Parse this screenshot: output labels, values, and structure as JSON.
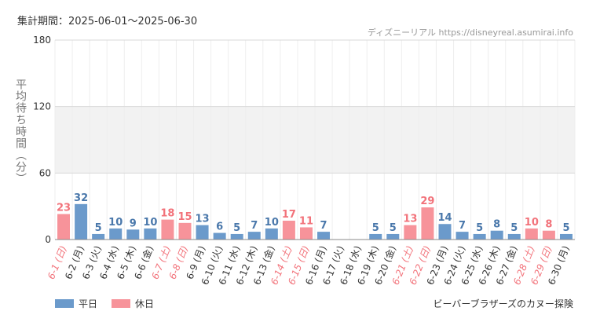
{
  "header": {
    "period_label": "集計期間：2025-06-01～2025-06-30",
    "source": "ディズニーリアル https://disneyreal.asumirai.info"
  },
  "legend": {
    "weekday": "平日",
    "holiday": "休日"
  },
  "footer": {
    "attraction": "ビーバーブラザーズのカヌー探険"
  },
  "colors": {
    "weekday": "#6b9acb",
    "holiday": "#f7939a",
    "weekday_text": "#4a78ab",
    "holiday_text": "#f2727a",
    "band": "#f2f2f2",
    "grid": "#d8d8d8"
  },
  "chart_data": {
    "type": "bar",
    "ylabel": "平均待ち時間（分）",
    "ylim": [
      0,
      180
    ],
    "yticks": [
      0,
      60,
      120,
      180
    ],
    "shaded_band": [
      60,
      120
    ],
    "categories": [
      "6-1 (日)",
      "6-2 (月)",
      "6-3 (火)",
      "6-4 (水)",
      "6-5 (木)",
      "6-6 (金)",
      "6-7 (土)",
      "6-8 (日)",
      "6-9 (月)",
      "6-10 (火)",
      "6-11 (水)",
      "6-12 (木)",
      "6-13 (金)",
      "6-14 (土)",
      "6-15 (日)",
      "6-16 (月)",
      "6-17 (火)",
      "6-18 (水)",
      "6-19 (木)",
      "6-20 (金)",
      "6-21 (土)",
      "6-22 (日)",
      "6-23 (月)",
      "6-24 (火)",
      "6-25 (水)",
      "6-26 (木)",
      "6-27 (金)",
      "6-28 (土)",
      "6-29 (日)",
      "6-30 (月)"
    ],
    "values": [
      23,
      32,
      5,
      10,
      9,
      10,
      18,
      15,
      13,
      6,
      5,
      7,
      10,
      17,
      11,
      7,
      null,
      null,
      5,
      5,
      13,
      29,
      14,
      7,
      5,
      8,
      5,
      10,
      8,
      5
    ],
    "day_type": [
      "holiday",
      "weekday",
      "weekday",
      "weekday",
      "weekday",
      "weekday",
      "holiday",
      "holiday",
      "weekday",
      "weekday",
      "weekday",
      "weekday",
      "weekday",
      "holiday",
      "holiday",
      "weekday",
      "weekday",
      "weekday",
      "weekday",
      "weekday",
      "holiday",
      "holiday",
      "weekday",
      "weekday",
      "weekday",
      "weekday",
      "weekday",
      "holiday",
      "holiday",
      "weekday"
    ]
  }
}
